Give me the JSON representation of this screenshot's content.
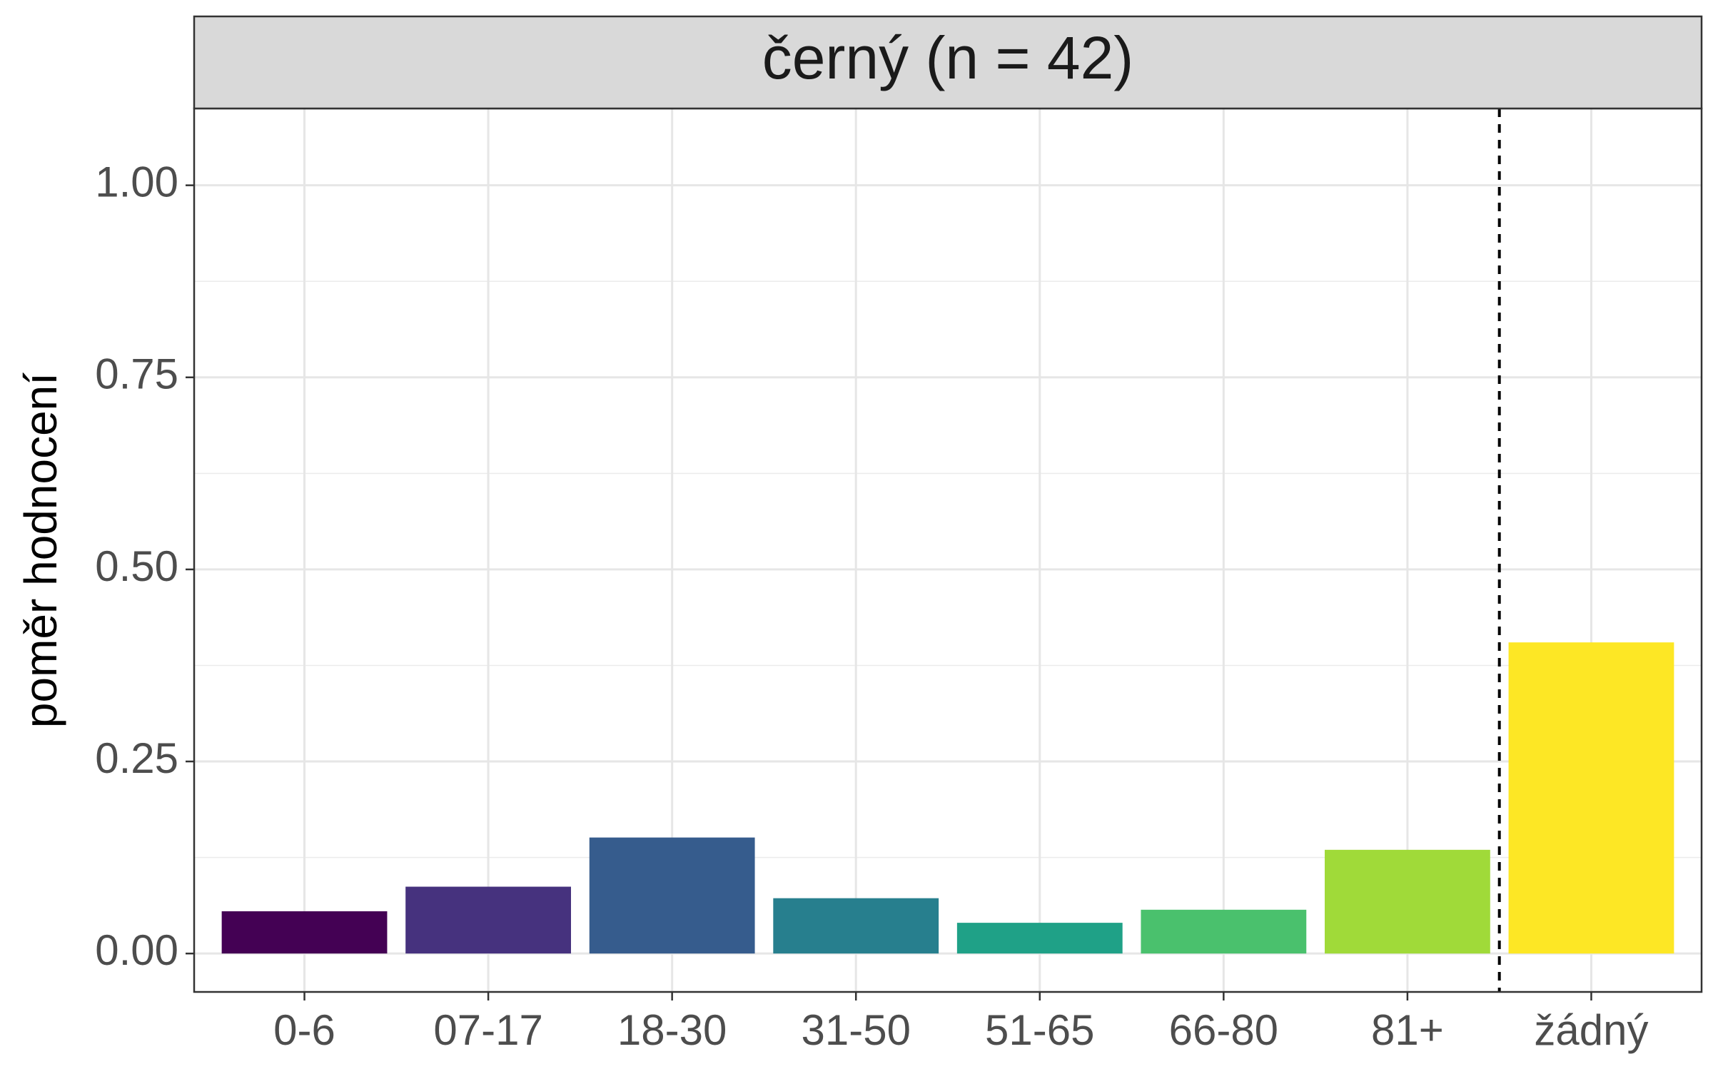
{
  "chart_data": {
    "type": "bar",
    "facet_title": "černý (n = 42)",
    "title": "",
    "xlabel": "",
    "ylabel": "poměr hodnocení",
    "categories": [
      "0-6",
      "07-17",
      "18-30",
      "31-50",
      "51-65",
      "66-80",
      "81+",
      "žádný"
    ],
    "values": [
      0.055,
      0.087,
      0.151,
      0.072,
      0.04,
      0.057,
      0.135,
      0.405
    ],
    "bar_colors": [
      "#440154",
      "#46327e",
      "#365c8d",
      "#277f8e",
      "#1fa187",
      "#4ac16d",
      "#a0da39",
      "#fde725"
    ],
    "ylim": [
      -0.05,
      1.1
    ],
    "yticks": [
      0.0,
      0.25,
      0.5,
      0.75,
      1.0
    ],
    "ytick_labels": [
      "0.00",
      "0.25",
      "0.50",
      "0.75",
      "1.00"
    ],
    "reference_line": {
      "style": "dashed",
      "between_categories": [
        "81+",
        "žádný"
      ]
    },
    "grid": true,
    "legend": "none"
  }
}
